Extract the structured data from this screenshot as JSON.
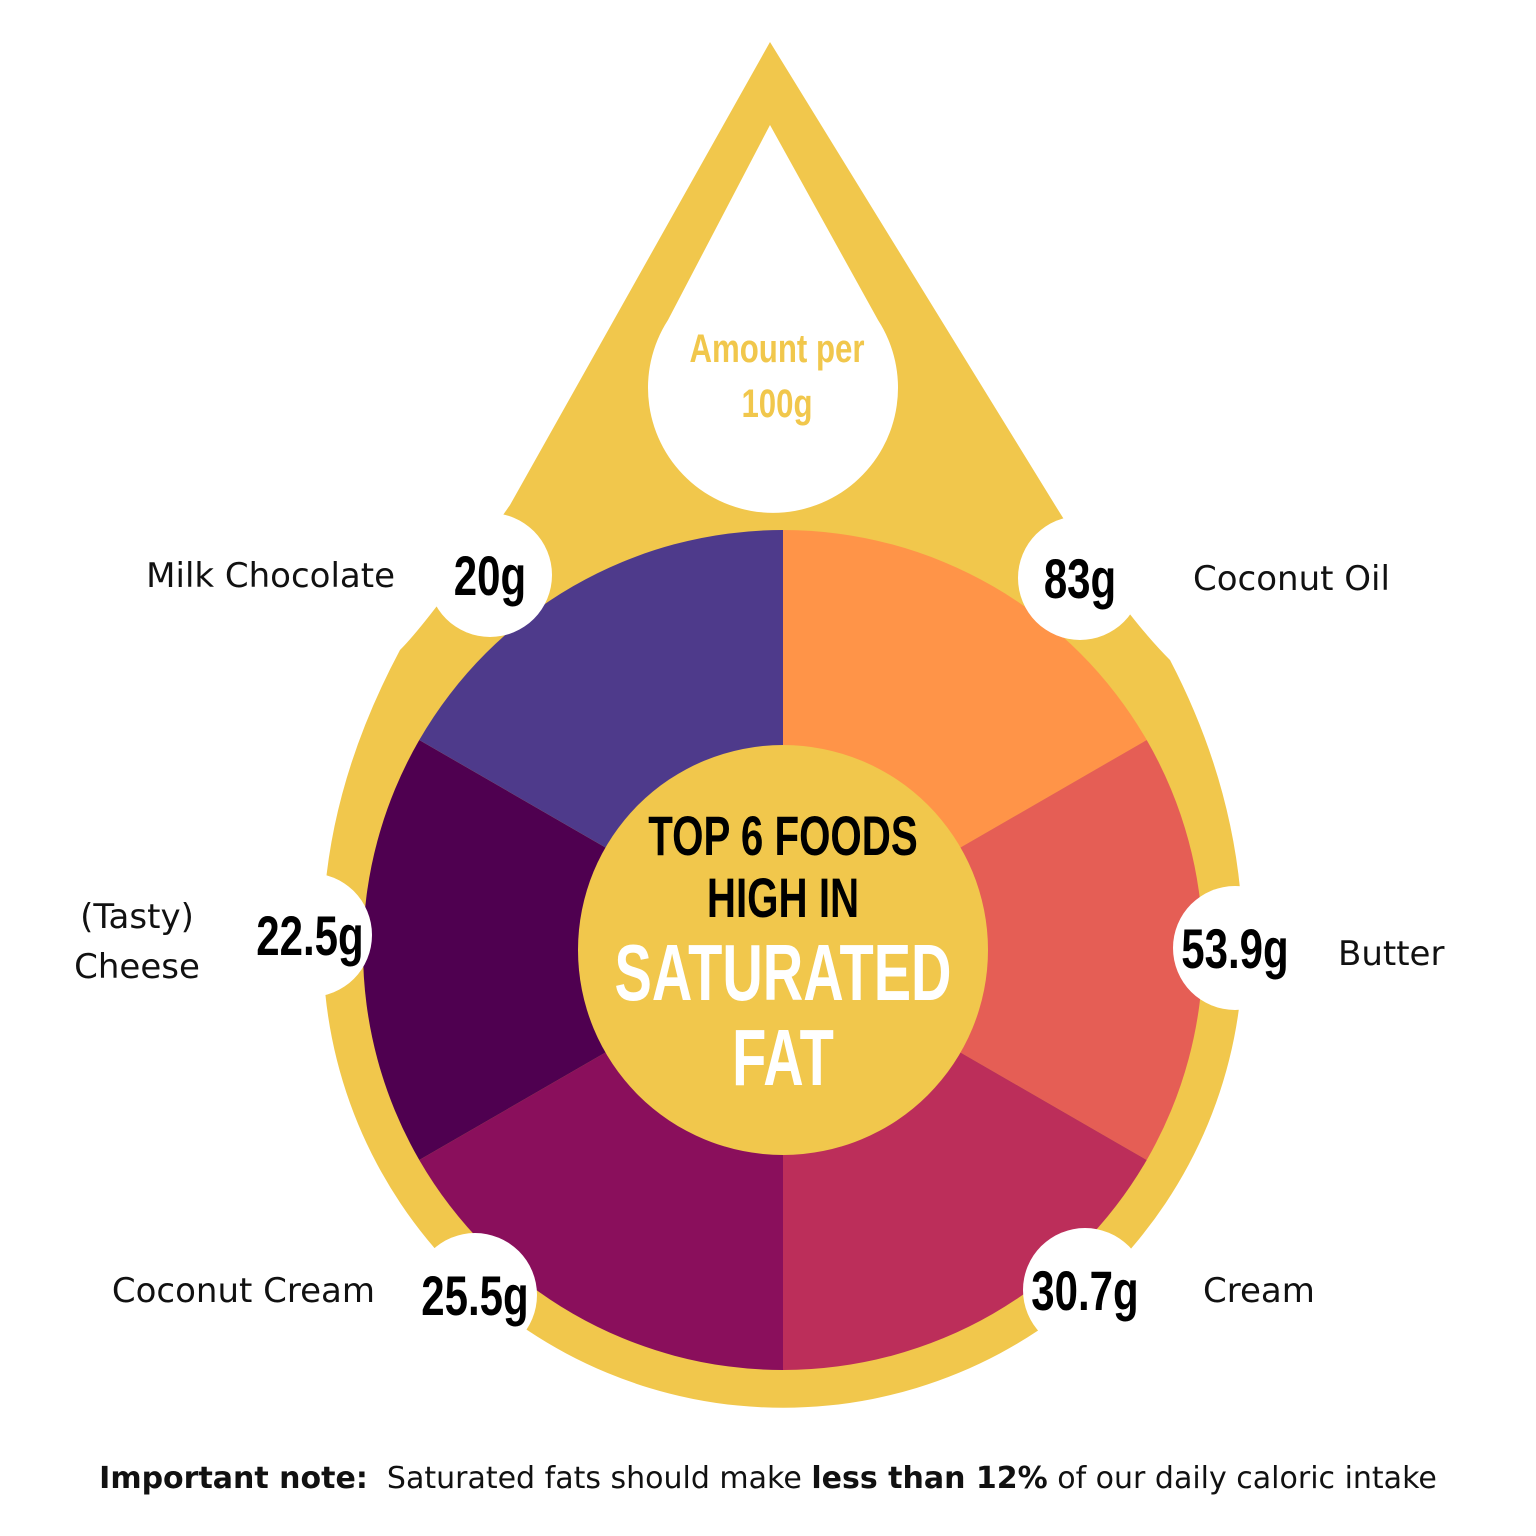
{
  "header": {
    "subtitle_lines": [
      "Amount per",
      "100g"
    ],
    "title_lines": [
      "TOP 6 FOODS",
      "HIGH IN"
    ],
    "highlight_lines": [
      "SATURATED",
      "FAT"
    ]
  },
  "items": [
    {
      "name_lines": [
        "Coconut Oil"
      ],
      "amount": "83g"
    },
    {
      "name_lines": [
        "Butter"
      ],
      "amount": "53.9g"
    },
    {
      "name_lines": [
        "Cream"
      ],
      "amount": "30.7g"
    },
    {
      "name_lines": [
        "Coconut Cream"
      ],
      "amount": "25.5g"
    },
    {
      "name_lines": [
        "(Tasty)",
        "Cheese"
      ],
      "amount": "22.5g"
    },
    {
      "name_lines": [
        "Milk Chocolate"
      ],
      "amount": "20g"
    }
  ],
  "note": {
    "parts": [
      {
        "text": "Important note:",
        "bold": true
      },
      {
        "text": "  Saturated fats should make ",
        "bold": false
      },
      {
        "text": "less than 12%",
        "bold": true
      },
      {
        "text": " of our daily caloric intake",
        "bold": false
      }
    ]
  }
}
